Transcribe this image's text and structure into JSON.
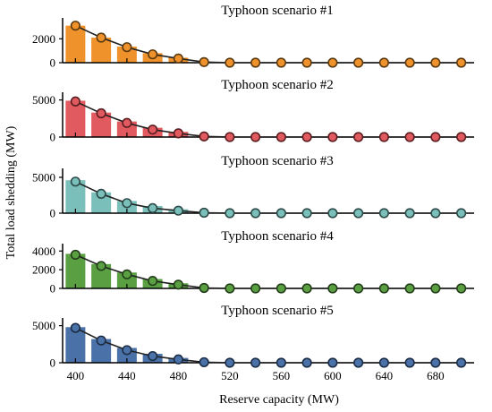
{
  "chart_data": [
    {
      "type": "bar",
      "title": "Typhoon scenario #1",
      "x": [
        400,
        420,
        440,
        460,
        480,
        500,
        520,
        540,
        560,
        580,
        600,
        620,
        640,
        660,
        680,
        700
      ],
      "bars": [
        3100,
        2100,
        1350,
        800,
        420,
        0,
        0,
        0,
        0,
        0,
        0,
        0,
        0,
        0,
        0,
        0
      ],
      "line": [
        3100,
        2100,
        1300,
        700,
        350,
        50,
        0,
        0,
        0,
        0,
        0,
        0,
        0,
        0,
        0,
        0
      ],
      "ylim": [
        0,
        3600
      ],
      "yticks": [
        0,
        2000
      ],
      "color": "#f0922b",
      "marker_edge": "#5a3a10"
    },
    {
      "type": "bar",
      "title": "Typhoon scenario #2",
      "x": [
        400,
        420,
        440,
        460,
        480,
        500,
        520,
        540,
        560,
        580,
        600,
        620,
        640,
        660,
        680,
        700
      ],
      "bars": [
        4900,
        3300,
        2100,
        1250,
        700,
        0,
        0,
        0,
        0,
        0,
        0,
        0,
        0,
        0,
        0,
        0
      ],
      "line": [
        4800,
        3200,
        1900,
        1000,
        500,
        80,
        0,
        0,
        0,
        0,
        0,
        0,
        0,
        0,
        0,
        0
      ],
      "ylim": [
        0,
        5800
      ],
      "yticks": [
        0,
        5000
      ],
      "color": "#e05a5f",
      "marker_edge": "#5a1e20"
    },
    {
      "type": "bar",
      "title": "Typhoon scenario #3",
      "x": [
        400,
        420,
        440,
        460,
        480,
        500,
        520,
        540,
        560,
        580,
        600,
        620,
        640,
        660,
        680,
        700
      ],
      "bars": [
        4600,
        2900,
        1700,
        1000,
        550,
        0,
        0,
        0,
        0,
        0,
        0,
        0,
        0,
        0,
        0,
        0
      ],
      "line": [
        4400,
        2700,
        1400,
        700,
        350,
        60,
        0,
        0,
        0,
        0,
        0,
        0,
        0,
        0,
        0,
        0
      ],
      "ylim": [
        0,
        6000
      ],
      "yticks": [
        0,
        5000
      ],
      "color": "#7bbfbb",
      "marker_edge": "#2d4a48"
    },
    {
      "type": "bar",
      "title": "Typhoon scenario #4",
      "x": [
        400,
        420,
        440,
        460,
        480,
        500,
        520,
        540,
        560,
        580,
        600,
        620,
        640,
        660,
        680,
        700
      ],
      "bars": [
        3700,
        2600,
        1700,
        1000,
        550,
        0,
        0,
        0,
        0,
        0,
        0,
        0,
        0,
        0,
        0,
        0
      ],
      "line": [
        3600,
        2400,
        1500,
        800,
        400,
        50,
        0,
        0,
        0,
        0,
        0,
        0,
        0,
        0,
        0,
        0
      ],
      "ylim": [
        0,
        4600
      ],
      "yticks": [
        0,
        2000,
        4000
      ],
      "color": "#5aa043",
      "marker_edge": "#233d1a"
    },
    {
      "type": "bar",
      "title": "Typhoon scenario #5",
      "x": [
        400,
        420,
        440,
        460,
        480,
        500,
        520,
        540,
        560,
        580,
        600,
        620,
        640,
        660,
        680,
        700
      ],
      "bars": [
        4800,
        3200,
        2000,
        1200,
        650,
        0,
        0,
        0,
        0,
        0,
        0,
        0,
        0,
        0,
        0,
        0
      ],
      "line": [
        4700,
        3000,
        1700,
        900,
        450,
        70,
        0,
        0,
        0,
        0,
        0,
        0,
        0,
        0,
        0,
        0
      ],
      "ylim": [
        0,
        5800
      ],
      "yticks": [
        0,
        5000
      ],
      "color": "#4b72a8",
      "marker_edge": "#1c2d45"
    }
  ],
  "axes": {
    "xlabel": "Reserve capacity (MW)",
    "ylabel": "Total load shedding (MW)",
    "xticks": [
      400,
      440,
      480,
      520,
      560,
      600,
      640,
      680
    ],
    "xlim": [
      390,
      710
    ]
  }
}
